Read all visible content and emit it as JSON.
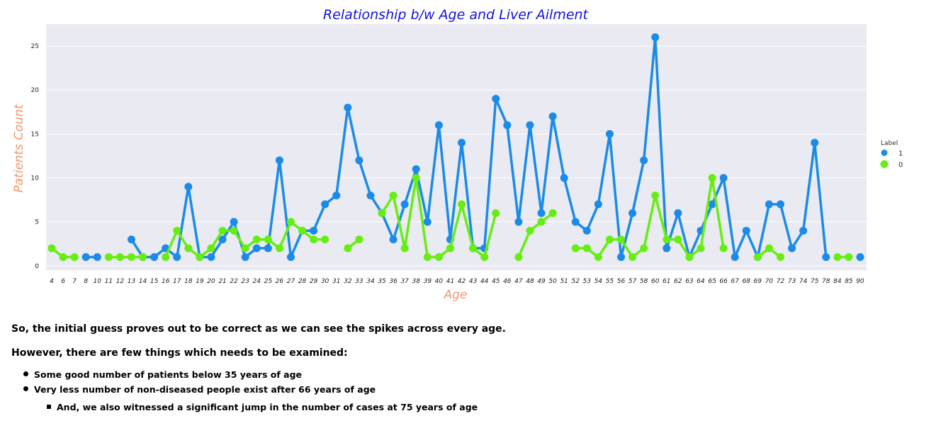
{
  "chart_data": {
    "type": "line",
    "title": "Relationship b/w Age and Liver Ailment",
    "xlabel": "Age",
    "ylabel": "Patients Count",
    "categories": [
      "4",
      "6",
      "7",
      "8",
      "10",
      "11",
      "12",
      "13",
      "14",
      "15",
      "16",
      "17",
      "18",
      "19",
      "20",
      "21",
      "22",
      "23",
      "24",
      "25",
      "26",
      "27",
      "28",
      "29",
      "30",
      "31",
      "32",
      "33",
      "34",
      "35",
      "36",
      "37",
      "38",
      "39",
      "40",
      "41",
      "42",
      "43",
      "44",
      "45",
      "46",
      "47",
      "48",
      "49",
      "50",
      "51",
      "52",
      "53",
      "54",
      "55",
      "56",
      "57",
      "58",
      "60",
      "61",
      "62",
      "63",
      "64",
      "65",
      "66",
      "67",
      "68",
      "69",
      "70",
      "72",
      "73",
      "74",
      "75",
      "78",
      "84",
      "85",
      "90"
    ],
    "yticks": [
      0,
      5,
      10,
      15,
      20,
      25
    ],
    "ylim": [
      -0.5,
      27.5
    ],
    "grid": true,
    "legend": {
      "title": "Label",
      "position": "right"
    },
    "series": [
      {
        "name": "1",
        "color": "#1a8be8",
        "values": [
          null,
          null,
          null,
          1,
          1,
          null,
          null,
          3,
          1,
          1,
          2,
          1,
          9,
          1,
          1,
          3,
          5,
          1,
          2,
          2,
          12,
          1,
          4,
          4,
          7,
          8,
          18,
          12,
          8,
          6,
          3,
          7,
          11,
          5,
          16,
          3,
          14,
          2,
          2,
          19,
          16,
          5,
          16,
          6,
          17,
          10,
          5,
          4,
          7,
          15,
          1,
          6,
          12,
          26,
          2,
          6,
          1,
          4,
          7,
          10,
          1,
          4,
          1,
          7,
          7,
          2,
          4,
          14,
          1,
          null,
          null,
          1
        ]
      },
      {
        "name": "0",
        "color": "#66ee11",
        "values": [
          2,
          1,
          1,
          null,
          null,
          1,
          1,
          1,
          1,
          null,
          1,
          4,
          2,
          1,
          2,
          4,
          4,
          2,
          3,
          3,
          2,
          5,
          4,
          3,
          3,
          null,
          2,
          3,
          null,
          6,
          8,
          2,
          10,
          1,
          1,
          2,
          7,
          2,
          1,
          6,
          null,
          1,
          4,
          5,
          6,
          null,
          2,
          2,
          1,
          3,
          3,
          1,
          2,
          8,
          3,
          3,
          1,
          2,
          10,
          2,
          null,
          null,
          1,
          2,
          1,
          null,
          null,
          null,
          null,
          1,
          1,
          null
        ]
      }
    ]
  },
  "notes": {
    "line1": "So, the initial guess proves out to be correct as we can see the spikes across every age.",
    "line2": "However, there are few things which needs to be examined:",
    "bullets": [
      "Some good number of patients below 35 years of age",
      "Very less number of non-diseased people exist after 66 years of age"
    ],
    "sub_bullets": [
      "And, we also witnessed a significant jump in the number of cases at 75 years of age"
    ]
  }
}
